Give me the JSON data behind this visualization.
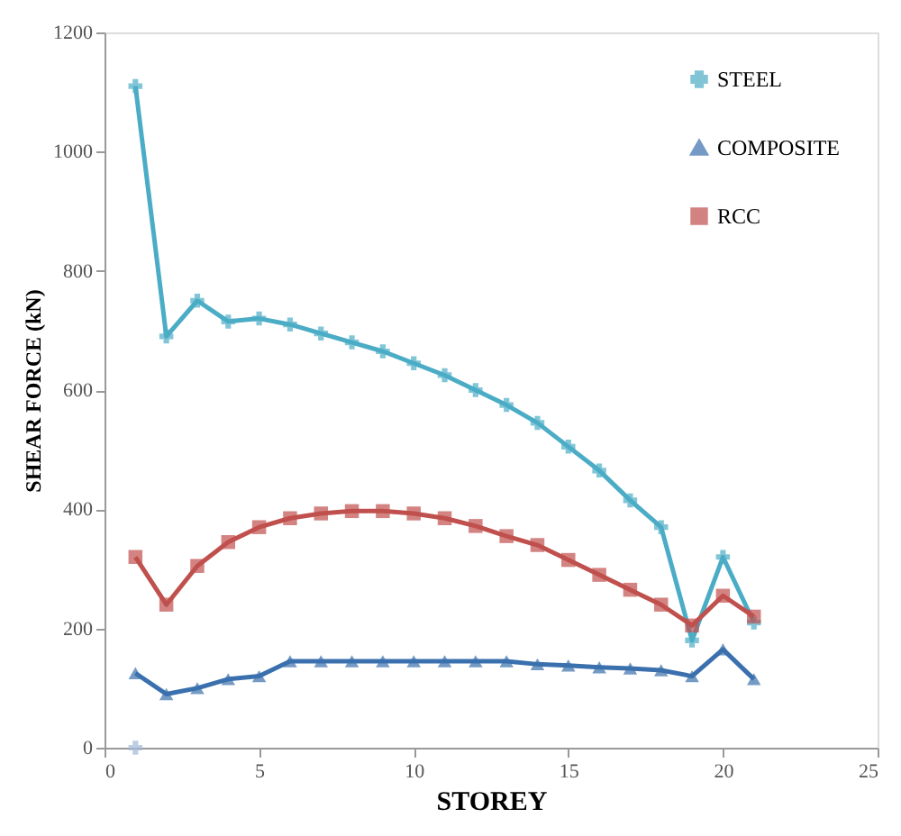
{
  "chart_data": {
    "type": "line",
    "xlabel": "STOREY",
    "ylabel": "SHEAR FORCE (kN)",
    "xlim": [
      0,
      25
    ],
    "xticks": [
      0,
      5,
      10,
      15,
      20,
      25
    ],
    "ylim": [
      0,
      1200
    ],
    "yticks": [
      0,
      200,
      400,
      600,
      800,
      1000,
      1200
    ],
    "grid": false,
    "legend": "top right",
    "line_style": "solid",
    "series": [
      {
        "name": "STEEL",
        "color": "#4bacc6",
        "marker": "cross",
        "x": [
          1,
          2,
          3,
          4,
          5,
          6,
          7,
          8,
          9,
          10,
          11,
          12,
          13,
          14,
          15,
          16,
          17,
          18,
          19,
          20,
          21
        ],
        "values": [
          1110,
          690,
          750,
          715,
          720,
          710,
          695,
          680,
          665,
          645,
          625,
          600,
          575,
          545,
          505,
          465,
          415,
          370,
          180,
          320,
          210
        ]
      },
      {
        "name": "COMPOSITE",
        "color": "#3a70ad",
        "marker": "triangle",
        "x": [
          1,
          2,
          3,
          4,
          5,
          6,
          7,
          8,
          9,
          10,
          11,
          12,
          13,
          14,
          15,
          16,
          17,
          18,
          19,
          20,
          21
        ],
        "values": [
          125,
          90,
          100,
          115,
          120,
          145,
          145,
          145,
          145,
          145,
          145,
          145,
          145,
          140,
          138,
          135,
          133,
          130,
          120,
          165,
          115
        ]
      },
      {
        "name": "RCC",
        "color": "#c0504d",
        "marker": "square",
        "x": [
          1,
          2,
          3,
          4,
          5,
          6,
          7,
          8,
          9,
          10,
          11,
          12,
          13,
          14,
          15,
          16,
          17,
          18,
          19,
          20,
          21
        ],
        "values": [
          320,
          240,
          305,
          345,
          370,
          385,
          393,
          397,
          397,
          393,
          385,
          372,
          355,
          340,
          315,
          290,
          265,
          240,
          205,
          255,
          220
        ]
      },
      {
        "type": "scatter",
        "color": "#9fb8d8",
        "marker": "cross",
        "x": [
          1
        ],
        "values": [
          0
        ]
      }
    ]
  }
}
